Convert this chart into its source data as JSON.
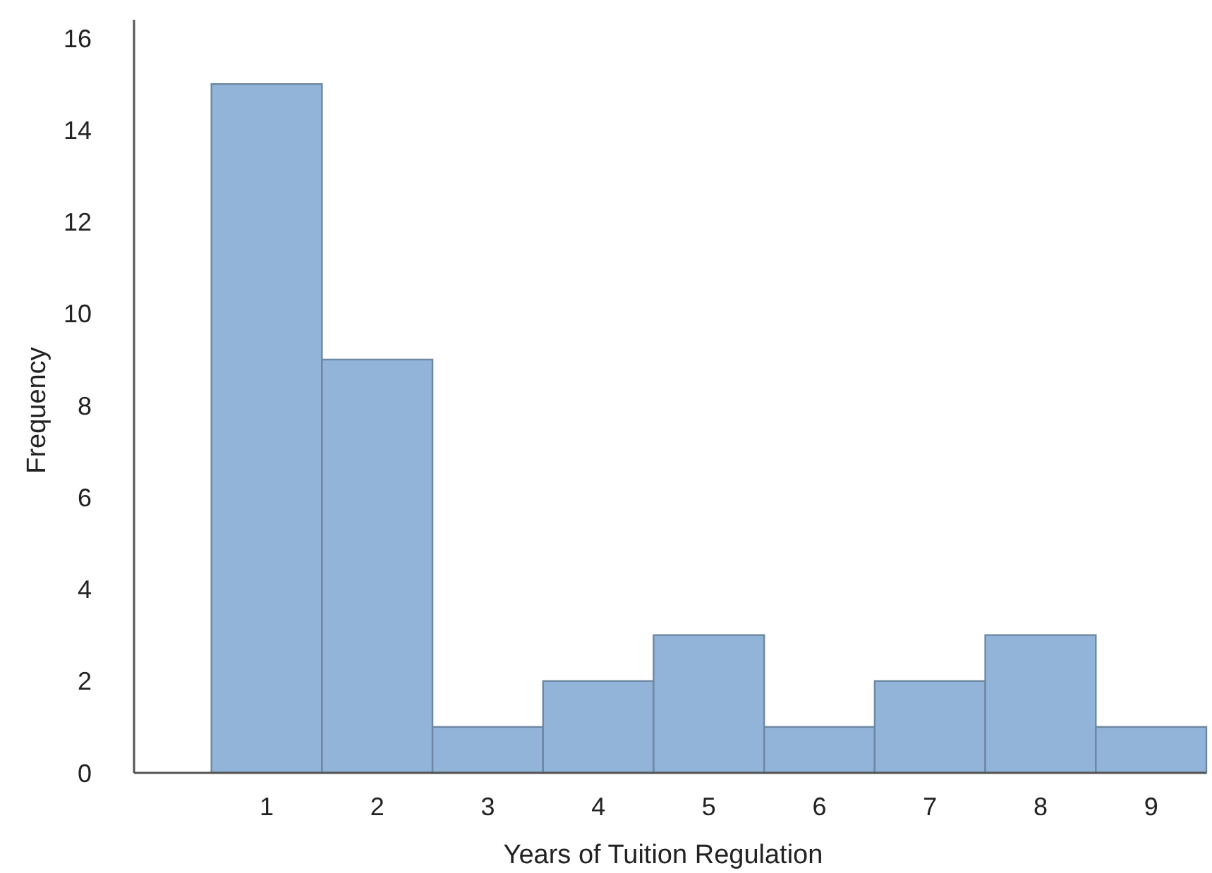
{
  "chart_data": {
    "type": "histogram",
    "xlabel": "Years of Tuition Regulation",
    "ylabel": "Frequency",
    "bins": [
      0.5,
      1.5,
      2.5,
      3.5,
      4.5,
      5.5,
      6.5,
      7.5,
      8.5,
      9.5
    ],
    "values": [
      15,
      9,
      1,
      2,
      3,
      1,
      2,
      3,
      1
    ],
    "color": "#92b4d8",
    "xlim": [
      -0.2,
      9.5
    ],
    "xticks": [
      1,
      2,
      3,
      4,
      5,
      6,
      7,
      8,
      9
    ],
    "ylim": [
      0,
      16.4
    ],
    "yticks": [
      0,
      2,
      4,
      6,
      8,
      10,
      12,
      14,
      16
    ],
    "grid": false
  }
}
